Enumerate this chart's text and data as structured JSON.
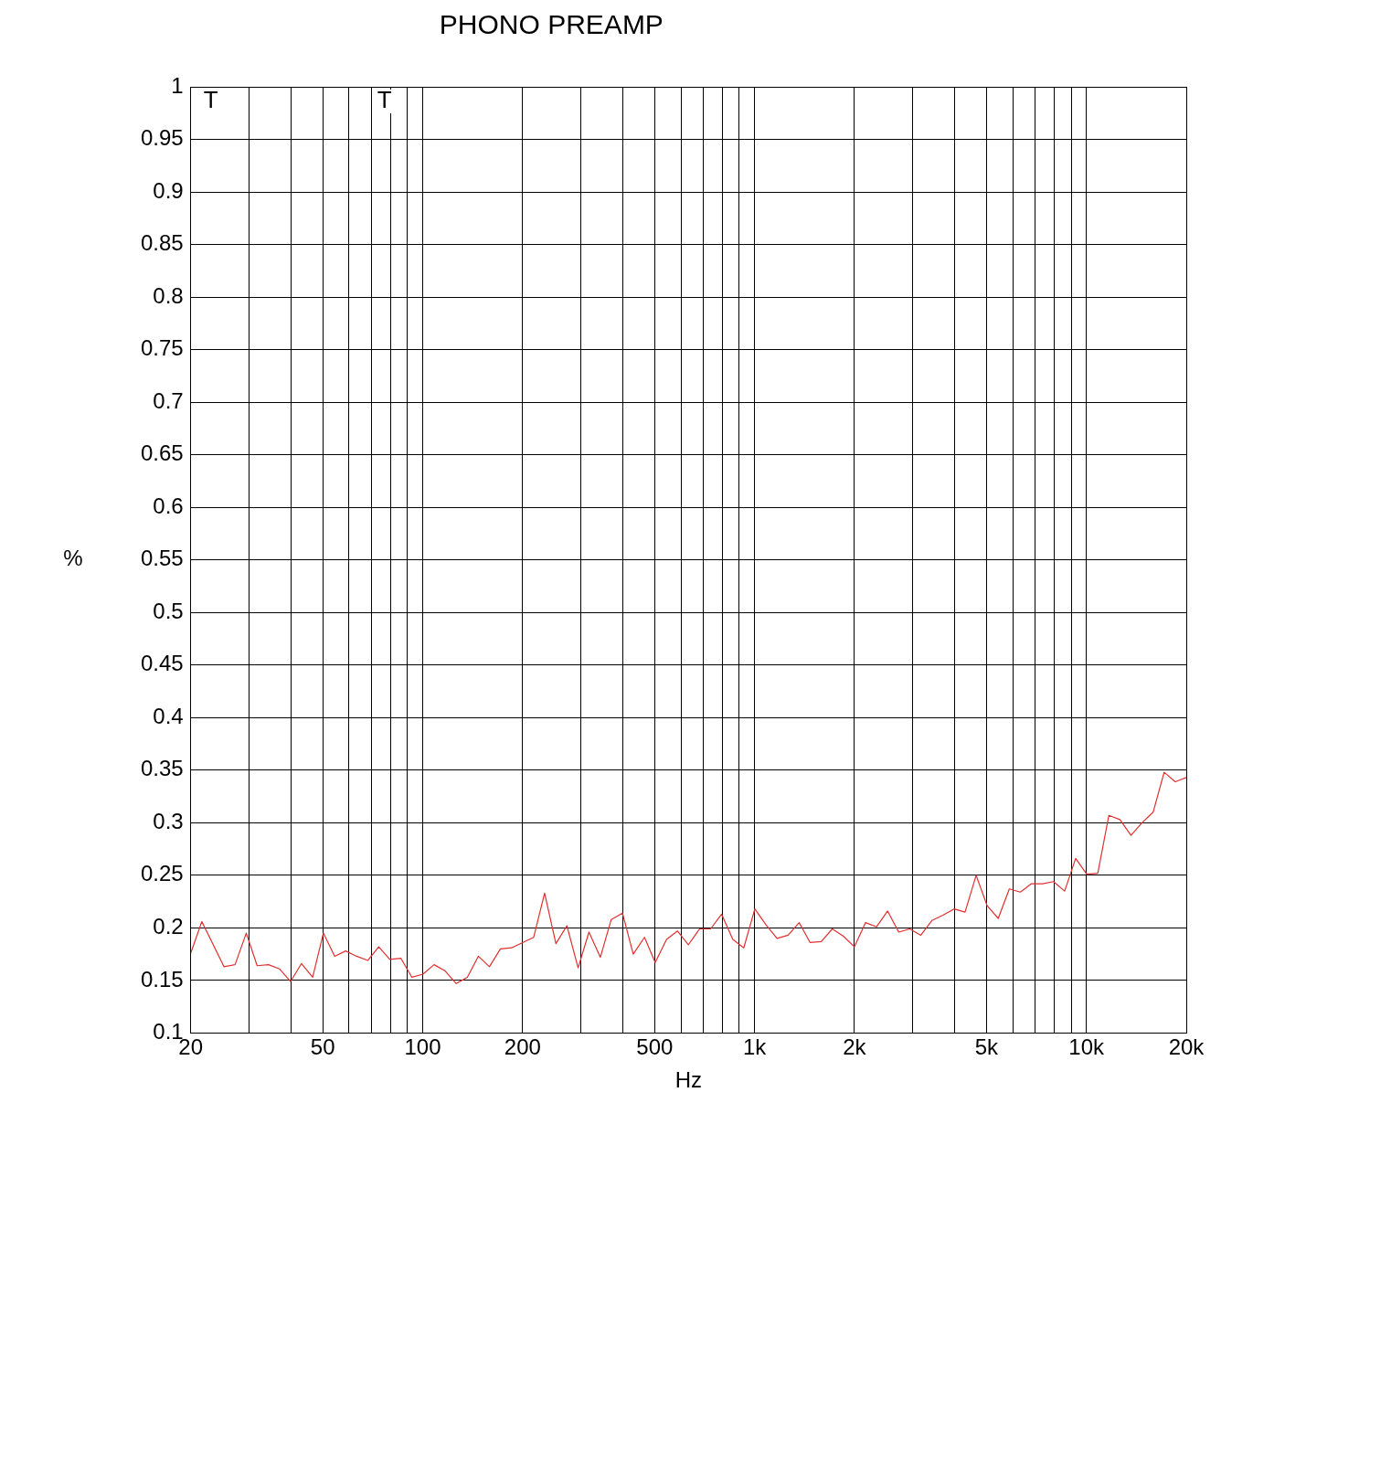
{
  "chart_data": {
    "type": "line",
    "title": "PHONO PREAMP",
    "xlabel": "Hz",
    "ylabel": "%",
    "log": "x",
    "grid": true,
    "legend": false,
    "marker": "none",
    "line_style": "solid",
    "xlim": [
      20,
      20000
    ],
    "ylim": [
      0.1,
      1
    ],
    "xticks": [
      20,
      {
        "value": 30,
        "label": null
      },
      {
        "value": 40,
        "label": null
      },
      50,
      {
        "value": 60,
        "label": null
      },
      {
        "value": 70,
        "label": null
      },
      {
        "value": 80,
        "label": null
      },
      {
        "value": 90,
        "label": null
      },
      100,
      200,
      {
        "value": 300,
        "label": null
      },
      {
        "value": 400,
        "label": null
      },
      500,
      {
        "value": 600,
        "label": null
      },
      {
        "value": 700,
        "label": null
      },
      {
        "value": 800,
        "label": null
      },
      {
        "value": 900,
        "label": null
      },
      {
        "value": 1000,
        "label": "1k"
      },
      {
        "value": 2000,
        "label": "2k"
      },
      {
        "value": 3000,
        "label": null
      },
      {
        "value": 4000,
        "label": null
      },
      {
        "value": 5000,
        "label": "5k"
      },
      {
        "value": 6000,
        "label": null
      },
      {
        "value": 7000,
        "label": null
      },
      {
        "value": 8000,
        "label": null
      },
      {
        "value": 9000,
        "label": null
      },
      {
        "value": 10000,
        "label": "10k"
      },
      {
        "value": 20000,
        "label": "20k"
      }
    ],
    "yticks": [
      0.1,
      0.15,
      0.2,
      0.25,
      0.3,
      0.35,
      0.4,
      0.45,
      0.5,
      0.55,
      0.6,
      0.65,
      0.7,
      0.75,
      0.8,
      0.85,
      0.9,
      0.95,
      1
    ],
    "annotations": [
      "T",
      "T"
    ],
    "series": [
      {
        "color": "#e03030",
        "x": [
          20,
          21.6,
          25.2,
          27.2,
          29.4,
          31.7,
          34.3,
          37,
          40,
          43.1,
          46.6,
          50.2,
          54.3,
          58.6,
          63.2,
          68.3,
          73.7,
          79.6,
          86,
          92.8,
          100.2,
          108.2,
          116.9,
          126.2,
          136.3,
          147.1,
          158.9,
          171.5,
          185.2,
          200,
          216,
          233,
          252,
          272,
          294,
          317,
          343,
          370,
          400,
          431,
          466,
          502,
          543,
          586,
          632,
          683,
          737,
          796,
          860,
          928,
          1002,
          1082,
          1169,
          1262,
          1363,
          1471,
          1589,
          1715,
          1852,
          2000,
          2160,
          2332,
          2518,
          2719,
          2936,
          3170,
          3423,
          3696,
          3991,
          4309,
          4653,
          5024,
          5425,
          5858,
          6325,
          6830,
          7375,
          7963,
          8599,
          9283,
          10024,
          10824,
          11688,
          12620,
          13627,
          14714,
          15888,
          17155,
          18524,
          20000
        ],
        "values": [
          0.176,
          0.206,
          0.163,
          0.165,
          0.195,
          0.164,
          0.165,
          0.161,
          0.149,
          0.166,
          0.153,
          0.195,
          0.173,
          0.178,
          0.173,
          0.169,
          0.182,
          0.17,
          0.171,
          0.153,
          0.156,
          0.165,
          0.159,
          0.147,
          0.153,
          0.173,
          0.163,
          0.18,
          0.181,
          0.186,
          0.191,
          0.233,
          0.185,
          0.202,
          0.162,
          0.196,
          0.172,
          0.208,
          0.214,
          0.175,
          0.191,
          0.167,
          0.189,
          0.197,
          0.184,
          0.199,
          0.199,
          0.213,
          0.189,
          0.181,
          0.218,
          0.203,
          0.19,
          0.193,
          0.205,
          0.186,
          0.187,
          0.199,
          0.192,
          0.182,
          0.205,
          0.201,
          0.216,
          0.196,
          0.199,
          0.193,
          0.207,
          0.212,
          0.218,
          0.215,
          0.25,
          0.221,
          0.209,
          0.237,
          0.234,
          0.242,
          0.242,
          0.244,
          0.235,
          0.266,
          0.251,
          0.252,
          0.307,
          0.303,
          0.288,
          0.3,
          0.31,
          0.348,
          0.339,
          0.343
        ]
      }
    ]
  }
}
